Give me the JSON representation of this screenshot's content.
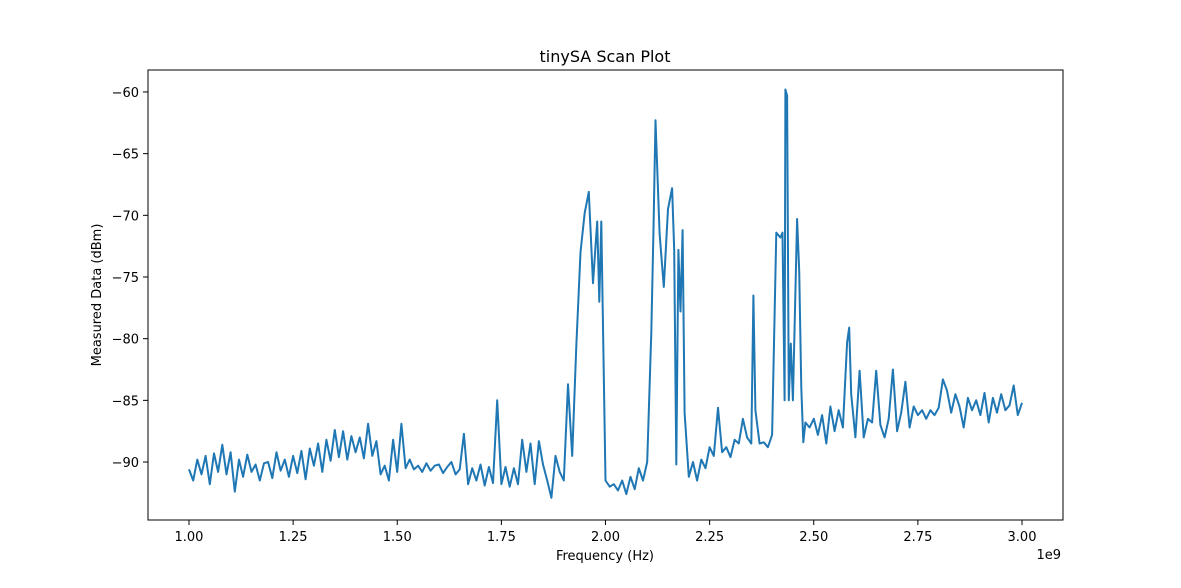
{
  "chart_data": {
    "type": "line",
    "title": "tinySA Scan Plot",
    "xlabel": "Frequency (Hz)",
    "ylabel": "Measured Data (dBm)",
    "x_offset_label": "1e9",
    "xlim": [
      0.9016,
      3.0984
    ],
    "ylim": [
      -94.7,
      -58.22
    ],
    "xticks": [
      "1.00",
      "1.25",
      "1.50",
      "1.75",
      "2.00",
      "2.25",
      "2.50",
      "2.75",
      "3.00"
    ],
    "yticks": [
      "-60",
      "-65",
      "-70",
      "-75",
      "-80",
      "-85",
      "-90"
    ],
    "grid": false,
    "line_color": "#1f77b4",
    "series": [
      {
        "x": [
          1.0,
          1.01,
          1.02,
          1.03,
          1.04,
          1.05,
          1.06,
          1.07,
          1.08,
          1.09,
          1.1,
          1.11,
          1.12,
          1.13,
          1.14,
          1.15,
          1.16,
          1.17,
          1.18,
          1.19,
          1.2,
          1.21,
          1.22,
          1.23,
          1.24,
          1.25,
          1.26,
          1.27,
          1.28,
          1.29,
          1.3,
          1.31,
          1.32,
          1.33,
          1.34,
          1.35,
          1.36,
          1.37,
          1.38,
          1.39,
          1.4,
          1.41,
          1.42,
          1.43,
          1.44,
          1.45,
          1.46,
          1.47,
          1.48,
          1.49,
          1.5,
          1.51,
          1.52,
          1.53,
          1.54,
          1.55,
          1.56,
          1.57,
          1.58,
          1.59,
          1.6,
          1.61,
          1.62,
          1.63,
          1.64,
          1.65,
          1.66,
          1.67,
          1.68,
          1.69,
          1.7,
          1.71,
          1.72,
          1.73,
          1.74,
          1.75,
          1.76,
          1.77,
          1.78,
          1.79,
          1.8,
          1.81,
          1.82,
          1.83,
          1.84,
          1.85,
          1.86,
          1.87,
          1.88,
          1.89,
          1.9,
          1.91,
          1.92,
          1.93,
          1.94,
          1.95,
          1.96,
          1.97,
          1.98,
          1.985,
          1.99,
          2.0,
          2.01,
          2.02,
          2.03,
          2.04,
          2.05,
          2.06,
          2.07,
          2.08,
          2.09,
          2.1,
          2.11,
          2.115,
          2.12,
          2.13,
          2.14,
          2.15,
          2.16,
          2.165,
          2.17,
          2.175,
          2.18,
          2.185,
          2.19,
          2.2,
          2.21,
          2.22,
          2.23,
          2.24,
          2.25,
          2.26,
          2.27,
          2.28,
          2.29,
          2.3,
          2.31,
          2.32,
          2.33,
          2.34,
          2.35,
          2.355,
          2.36,
          2.37,
          2.38,
          2.39,
          2.4,
          2.41,
          2.42,
          2.425,
          2.43,
          2.432,
          2.436,
          2.44,
          2.445,
          2.45,
          2.46,
          2.465,
          2.47,
          2.475,
          2.48,
          2.49,
          2.5,
          2.51,
          2.52,
          2.53,
          2.54,
          2.55,
          2.56,
          2.57,
          2.58,
          2.585,
          2.59,
          2.6,
          2.61,
          2.62,
          2.63,
          2.64,
          2.65,
          2.66,
          2.67,
          2.68,
          2.69,
          2.7,
          2.71,
          2.72,
          2.73,
          2.74,
          2.75,
          2.76,
          2.77,
          2.78,
          2.79,
          2.8,
          2.81,
          2.82,
          2.83,
          2.84,
          2.85,
          2.86,
          2.87,
          2.88,
          2.89,
          2.9,
          2.91,
          2.92,
          2.93,
          2.94,
          2.95,
          2.96,
          2.97,
          2.98,
          2.99,
          3.0
        ],
        "y": [
          -90.6,
          -91.5,
          -89.8,
          -91,
          -89.5,
          -91.8,
          -89.3,
          -90.8,
          -88.6,
          -91,
          -89.2,
          -92.4,
          -89.8,
          -91.2,
          -89.4,
          -90.8,
          -90.2,
          -91.5,
          -90.1,
          -90.0,
          -91.3,
          -89.2,
          -90.7,
          -89.8,
          -91.2,
          -89.5,
          -90.9,
          -89.1,
          -91.4,
          -88.9,
          -90.3,
          -88.5,
          -90.8,
          -88.2,
          -89.9,
          -87.4,
          -89.6,
          -87.5,
          -89.8,
          -87.9,
          -89.2,
          -88.0,
          -89.7,
          -86.9,
          -89.5,
          -88.3,
          -91.0,
          -90.3,
          -91.5,
          -88.2,
          -90.8,
          -86.9,
          -90.5,
          -89.8,
          -90.6,
          -90.3,
          -90.8,
          -90.1,
          -90.7,
          -90.3,
          -90.2,
          -90.9,
          -90.4,
          -90.0,
          -91.0,
          -90.6,
          -87.7,
          -91.8,
          -90.5,
          -91.5,
          -90.2,
          -91.9,
          -90.4,
          -91.7,
          -85.0,
          -91.8,
          -90.4,
          -92.0,
          -90.5,
          -91.8,
          -88.2,
          -90.8,
          -88.5,
          -91.8,
          -88.3,
          -90.2,
          -91.5,
          -92.9,
          -89.5,
          -90.8,
          -91.5,
          -83.7,
          -89.5,
          -80.6,
          -73.0,
          -69.8,
          -68.1,
          -75.5,
          -70.5,
          -77,
          -70.5,
          -91.5,
          -92,
          -91.8,
          -92.3,
          -91.5,
          -92.6,
          -91.2,
          -92.2,
          -90.5,
          -91.5,
          -90.0,
          -79.5,
          -71.5,
          -62.3,
          -71.5,
          -75.8,
          -69.5,
          -67.8,
          -72.8,
          -90.2,
          -72.8,
          -77.8,
          -71.2,
          -86,
          -91.2,
          -90.0,
          -91.5,
          -89.8,
          -90.5,
          -88.8,
          -89.5,
          -85.6,
          -89.2,
          -88.8,
          -89.6,
          -88.2,
          -88.5,
          -86.5,
          -88.0,
          -88.5,
          -76.5,
          -85.8,
          -88.5,
          -88.4,
          -88.8,
          -87.8,
          -71.4,
          -71.8,
          -71.4,
          -85,
          -59.8,
          -60.3,
          -85,
          -80.4,
          -85,
          -70.3,
          -74.5,
          -84,
          -88.4,
          -86.8,
          -87.2,
          -86.5,
          -87.8,
          -86.2,
          -88.5,
          -85.5,
          -87.5,
          -85.8,
          -87.2,
          -80.3,
          -79.1,
          -84.5,
          -88.0,
          -82.6,
          -88.0,
          -86.5,
          -86.8,
          -82.6,
          -87.0,
          -88.0,
          -86.5,
          -82.5,
          -87.5,
          -86.0,
          -83.5,
          -87.2,
          -85.5,
          -86.2,
          -85.8,
          -86.5,
          -85.8,
          -86.2,
          -85.6,
          -83.3,
          -84.2,
          -86.0,
          -84.5,
          -85.5,
          -87.2,
          -84.8,
          -85.8,
          -85.0,
          -86.2,
          -84.4,
          -86.8,
          -84.8,
          -86.0,
          -84.5,
          -85.8,
          -85.4,
          -83.8,
          -86.2,
          -85.2
        ]
      }
    ]
  }
}
